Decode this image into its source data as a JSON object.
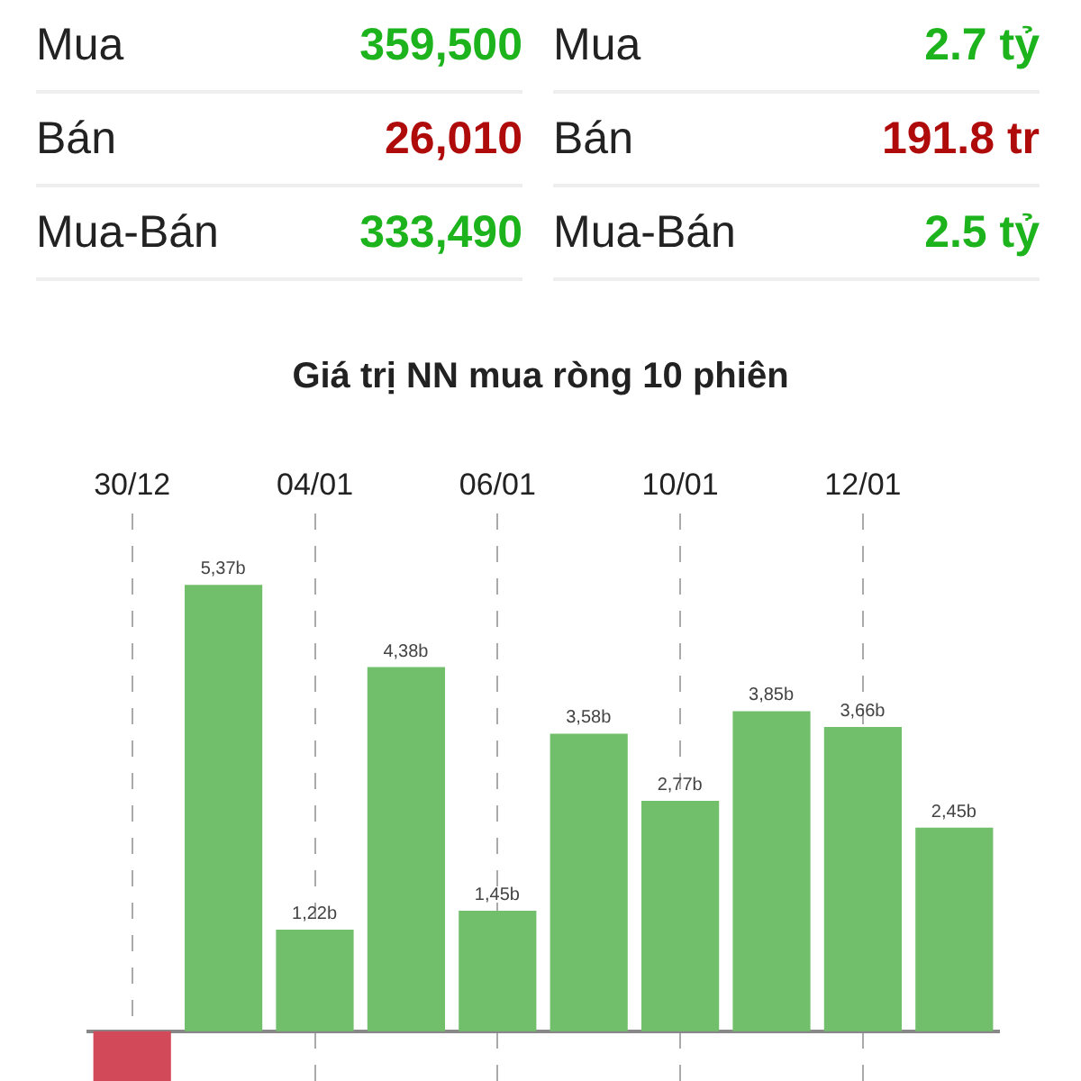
{
  "chart_data": [
    {
      "type": "other",
      "categories": [
        "Mua",
        "Bán",
        "Mua-Bán",
        "Mua",
        "Bán",
        "Mua-Bán"
      ],
      "value_labels": [
        "359,500",
        "26,010",
        "333,490",
        "2.7 tỷ",
        "191.8 tr",
        "2.5 tỷ"
      ],
      "colors": [
        "#1db31d",
        "#b00b0b",
        "#1db31d",
        "#1db31d",
        "#b00b0b",
        "#1db31d"
      ]
    },
    {
      "type": "bar",
      "title": "Giá trị NN mua ròng 10 phiên",
      "categories": [
        "30/12",
        null,
        "04/01",
        null,
        "06/01",
        null,
        "10/01",
        null,
        "12/01",
        null
      ],
      "values": [
        -0.6,
        5.37,
        1.22,
        4.38,
        1.45,
        3.58,
        2.77,
        3.85,
        3.66,
        2.45
      ],
      "colors": [
        "#d24a5a",
        "#71bf6b",
        "#71bf6b",
        "#71bf6b",
        "#71bf6b",
        "#71bf6b",
        "#71bf6b",
        "#71bf6b",
        "#71bf6b",
        "#71bf6b"
      ],
      "value_labels": [
        null,
        "5,37b",
        "1,22b",
        "4,38b",
        "1,45b",
        "3,58b",
        "2,77b",
        "3,85b",
        "3,66b",
        "2,45b"
      ],
      "grid": "x"
    }
  ]
}
